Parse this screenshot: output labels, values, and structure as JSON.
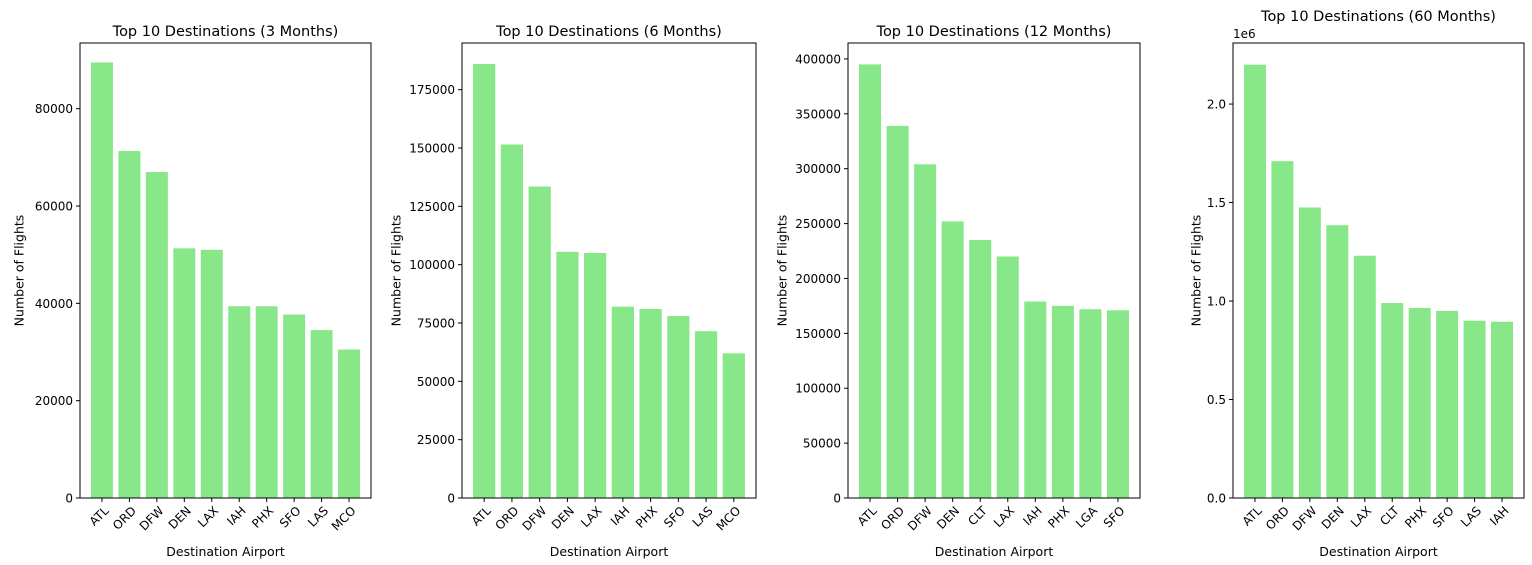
{
  "chart_data": [
    {
      "type": "bar",
      "title": "Top 10 Destinations (3 Months)",
      "xlabel": "Destination Airport",
      "ylabel": "Number of Flights",
      "categories": [
        "ATL",
        "ORD",
        "DFW",
        "DEN",
        "LAX",
        "IAH",
        "PHX",
        "SFO",
        "LAS",
        "MCO"
      ],
      "values": [
        89500,
        71300,
        67000,
        51300,
        51000,
        39400,
        39400,
        37700,
        34500,
        30500
      ],
      "ylim": [
        0,
        93500
      ],
      "yticks": [
        0,
        20000,
        40000,
        60000,
        80000
      ],
      "ytick_labels": [
        "0",
        "20000",
        "40000",
        "60000",
        "80000"
      ],
      "offset_label": "",
      "grid": false,
      "bar_color": "#88e788"
    },
    {
      "type": "bar",
      "title": "Top 10 Destinations (6 Months)",
      "xlabel": "Destination Airport",
      "ylabel": "Number of Flights",
      "categories": [
        "ATL",
        "ORD",
        "DFW",
        "DEN",
        "LAX",
        "IAH",
        "PHX",
        "SFO",
        "LAS",
        "MCO"
      ],
      "values": [
        186000,
        151500,
        133500,
        105500,
        105000,
        82000,
        81000,
        78000,
        71500,
        62000
      ],
      "ylim": [
        0,
        195000
      ],
      "yticks": [
        0,
        25000,
        50000,
        75000,
        100000,
        125000,
        150000,
        175000
      ],
      "ytick_labels": [
        "0",
        "25000",
        "50000",
        "75000",
        "100000",
        "125000",
        "150000",
        "175000"
      ],
      "offset_label": "",
      "grid": false,
      "bar_color": "#88e788"
    },
    {
      "type": "bar",
      "title": "Top 10 Destinations (12 Months)",
      "xlabel": "Destination Airport",
      "ylabel": "Number of Flights",
      "categories": [
        "ATL",
        "ORD",
        "DFW",
        "DEN",
        "CLT",
        "LAX",
        "IAH",
        "PHX",
        "LGA",
        "SFO"
      ],
      "values": [
        395000,
        339000,
        304000,
        252000,
        235000,
        220000,
        179000,
        175000,
        172000,
        171000
      ],
      "ylim": [
        0,
        414500
      ],
      "yticks": [
        0,
        50000,
        100000,
        150000,
        200000,
        250000,
        300000,
        350000,
        400000
      ],
      "ytick_labels": [
        "0",
        "50000",
        "100000",
        "150000",
        "200000",
        "250000",
        "300000",
        "350000",
        "400000"
      ],
      "offset_label": "",
      "grid": false,
      "bar_color": "#88e788"
    },
    {
      "type": "bar",
      "title": "Top 10 Destinations (60 Months)",
      "xlabel": "Destination Airport",
      "ylabel": "Number of Flights",
      "categories": [
        "ATL",
        "ORD",
        "DFW",
        "DEN",
        "LAX",
        "CLT",
        "PHX",
        "SFO",
        "LAS",
        "IAH"
      ],
      "values": [
        2200000,
        1710000,
        1475000,
        1385000,
        1230000,
        990000,
        965000,
        950000,
        900000,
        895000
      ],
      "ylim": [
        0,
        2310000
      ],
      "yticks": [
        0,
        500000,
        1000000,
        1500000,
        2000000
      ],
      "ytick_labels": [
        "0.0",
        "0.5",
        "1.0",
        "1.5",
        "2.0"
      ],
      "offset_label": "1e6",
      "grid": false,
      "bar_color": "#88e788"
    }
  ]
}
